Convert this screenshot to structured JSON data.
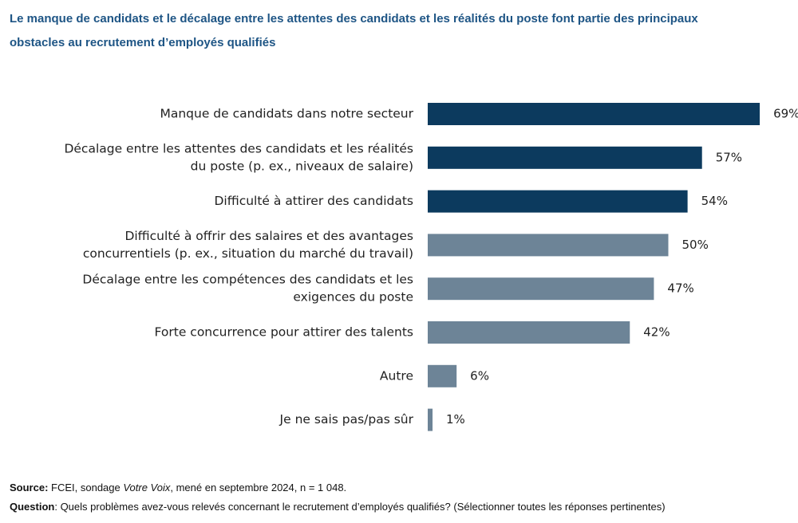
{
  "chart_data": {
    "type": "bar",
    "orientation": "horizontal",
    "title": [
      "Le manque de candidats et le décalage entre les attentes des candidats et les réalités du poste font partie des principaux",
      "obstacles au recrutement d’employés qualifiés"
    ],
    "categories": [
      [
        "Manque de candidats dans notre secteur"
      ],
      [
        "Décalage entre les attentes des candidats et les réalités",
        "du poste (p. ex., niveaux de salaire)"
      ],
      [
        "Difficulté à attirer des candidats"
      ],
      [
        "Difficulté à offrir des salaires et des avantages",
        "concurrentiels (p. ex., situation du marché du travail)"
      ],
      [
        "Décalage entre les compétences des candidats et les",
        "exigences du poste"
      ],
      [
        "Forte concurrence pour attirer des talents"
      ],
      [
        "Autre"
      ],
      [
        "Je ne sais pas/pas sûr"
      ]
    ],
    "values": [
      69,
      57,
      54,
      50,
      47,
      42,
      6,
      1
    ],
    "value_labels": [
      "69%",
      "57%",
      "54%",
      "50%",
      "47%",
      "42%",
      "6%",
      "1%"
    ],
    "colors": [
      "#0c3a5e",
      "#0c3a5e",
      "#0c3a5e",
      "#6d8497",
      "#6d8497",
      "#6d8497",
      "#6d8497",
      "#6d8497"
    ]
  },
  "footer": {
    "source": {
      "label": "Source:",
      "text1": " FCEI, sondage ",
      "italic": "Votre Voix",
      "text2": ", mené en septembre 2024, n = 1 048."
    },
    "question": {
      "label": "Question",
      "text": ": Quels problèmes avez-vous relevés concernant le recrutement d’employés qualifiés? (Sélectionner toutes les réponses pertinentes)"
    }
  }
}
